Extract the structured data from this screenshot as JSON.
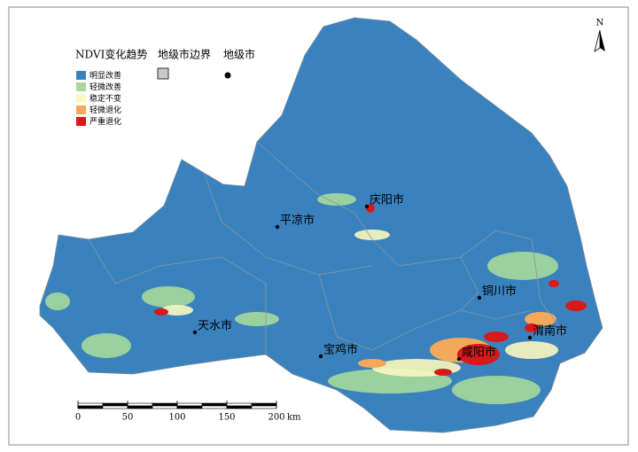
{
  "legend": {
    "title": "NDVI变化趋势",
    "boundary_label": "地级市边界",
    "city_label": "地级市",
    "items": [
      {
        "label": "明显改善",
        "color": "#3a82be"
      },
      {
        "label": "轻微改善",
        "color": "#a6d99b"
      },
      {
        "label": "稳定不变",
        "color": "#fbf7bd"
      },
      {
        "label": "轻微退化",
        "color": "#f4a95a"
      },
      {
        "label": "严重退化",
        "color": "#d7191c"
      }
    ]
  },
  "cities": [
    {
      "name": "庆阳市"
    },
    {
      "name": "平凉市"
    },
    {
      "name": "天水市"
    },
    {
      "name": "宝鸡市"
    },
    {
      "name": "铜川市"
    },
    {
      "name": "渭南市"
    },
    {
      "name": "咸阳市"
    }
  ],
  "scale_bar": {
    "ticks": [
      0,
      50,
      100,
      150,
      200
    ],
    "unit": "km"
  },
  "north": "N"
}
